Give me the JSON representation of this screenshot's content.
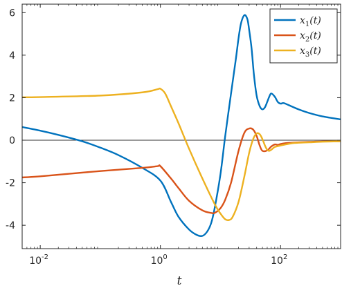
{
  "chart_data": {
    "type": "line",
    "xscale": "log",
    "xlim": [
      0.005,
      1000
    ],
    "ylim": [
      -5.1,
      6.4
    ],
    "xlabel": "t",
    "ylabel": "",
    "title": "",
    "grid": false,
    "legend_position": "top-right",
    "x_ticks": [
      {
        "value": 0.01,
        "base": "10",
        "exp": "-2"
      },
      {
        "value": 1,
        "base": "10",
        "exp": "0"
      },
      {
        "value": 100,
        "base": "10",
        "exp": "2"
      }
    ],
    "y_ticks": [
      {
        "value": -4,
        "label": "-4"
      },
      {
        "value": -2,
        "label": "-2"
      },
      {
        "value": 0,
        "label": "0"
      },
      {
        "value": 2,
        "label": "2"
      },
      {
        "value": 4,
        "label": "4"
      },
      {
        "value": 6,
        "label": "6"
      }
    ],
    "reference_line": {
      "y": 0,
      "color": "#333333"
    },
    "series": [
      {
        "name": "x1(t)",
        "legend_main": "x",
        "legend_sub": "1",
        "legend_suffix": "(t)",
        "color": "#0072BD",
        "x": [
          0.005,
          0.01,
          0.02,
          0.05,
          0.1,
          0.2,
          0.5,
          1,
          1.5,
          2,
          3,
          4,
          5,
          6,
          7,
          8,
          10,
          12,
          15,
          18,
          20,
          22,
          25,
          28,
          30,
          33,
          36,
          40,
          45,
          50,
          55,
          60,
          65,
          70,
          80,
          90,
          100,
          110,
          120,
          150,
          200,
          300,
          500,
          1000
        ],
        "y": [
          0.62,
          0.45,
          0.25,
          -0.05,
          -0.35,
          -0.7,
          -1.3,
          -1.9,
          -2.9,
          -3.6,
          -4.2,
          -4.45,
          -4.5,
          -4.3,
          -3.9,
          -3.2,
          -1.6,
          0.2,
          2.2,
          3.8,
          4.8,
          5.5,
          5.88,
          5.7,
          5.2,
          4.3,
          3.1,
          2.1,
          1.6,
          1.45,
          1.55,
          1.8,
          2.05,
          2.2,
          2.05,
          1.8,
          1.72,
          1.75,
          1.72,
          1.6,
          1.45,
          1.28,
          1.12,
          0.98
        ]
      },
      {
        "name": "x2(t)",
        "legend_main": "x",
        "legend_sub": "2",
        "legend_suffix": "(t)",
        "color": "#D95319",
        "x": [
          0.005,
          0.01,
          0.1,
          0.5,
          0.9,
          1,
          1.5,
          2,
          3,
          5,
          7,
          8,
          10,
          12,
          15,
          20,
          25,
          30,
          35,
          40,
          45,
          50,
          60,
          70,
          80,
          90,
          100,
          120,
          150,
          200,
          300,
          500,
          1000
        ],
        "y": [
          -1.75,
          -1.7,
          -1.45,
          -1.3,
          -1.22,
          -1.22,
          -1.8,
          -2.25,
          -2.85,
          -3.3,
          -3.42,
          -3.42,
          -3.2,
          -2.8,
          -2.0,
          -0.5,
          0.35,
          0.55,
          0.5,
          0.2,
          -0.25,
          -0.5,
          -0.48,
          -0.3,
          -0.2,
          -0.22,
          -0.18,
          -0.14,
          -0.12,
          -0.1,
          -0.08,
          -0.06,
          -0.05
        ]
      },
      {
        "name": "x3(t)",
        "legend_main": "x",
        "legend_sub": "3",
        "legend_suffix": "(t)",
        "color": "#EDB120",
        "x": [
          0.005,
          0.01,
          0.1,
          0.5,
          0.9,
          1,
          1.2,
          1.5,
          2,
          3,
          5,
          8,
          10,
          12,
          14,
          16,
          20,
          25,
          30,
          35,
          40,
          45,
          50,
          55,
          60,
          65,
          70,
          80,
          90,
          100,
          120,
          150,
          200,
          300,
          500,
          1000
        ],
        "y": [
          2.02,
          2.03,
          2.1,
          2.25,
          2.4,
          2.42,
          2.2,
          1.6,
          0.8,
          -0.4,
          -1.8,
          -3.0,
          -3.45,
          -3.72,
          -3.75,
          -3.6,
          -2.9,
          -1.7,
          -0.6,
          0.05,
          0.32,
          0.28,
          0.05,
          -0.25,
          -0.45,
          -0.5,
          -0.45,
          -0.32,
          -0.28,
          -0.25,
          -0.2,
          -0.15,
          -0.12,
          -0.1,
          -0.07,
          -0.05
        ]
      }
    ]
  }
}
